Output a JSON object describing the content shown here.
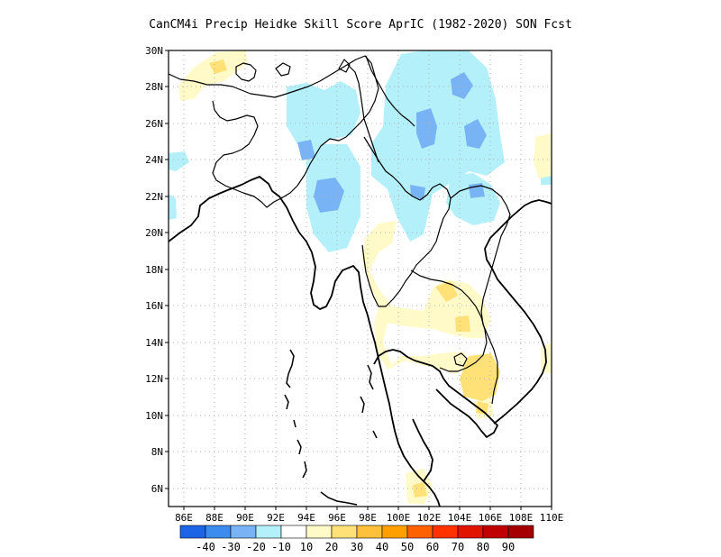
{
  "title": "CanCM4i Precip Heidke Skill Score AprIC (1982-2020) SON Fcst",
  "map": {
    "lon_range": [
      85,
      110
    ],
    "lat_range": [
      5,
      30
    ],
    "lat_ticks": [
      "6N",
      "8N",
      "10N",
      "12N",
      "14N",
      "16N",
      "18N",
      "20N",
      "22N",
      "24N",
      "26N",
      "28N",
      "30N"
    ],
    "lon_ticks": [
      "86E",
      "88E",
      "90E",
      "92E",
      "94E",
      "96E",
      "98E",
      "100E",
      "102E",
      "104E",
      "106E",
      "108E",
      "110E"
    ],
    "grid": "dotted"
  },
  "colorbar": {
    "colors": [
      "#1e64e6",
      "#3c8cf0",
      "#78b4f5",
      "#b4f0fa",
      "#ffffff",
      "#fffac8",
      "#ffe178",
      "#ffc03c",
      "#ffa000",
      "#ff6000",
      "#ff3200",
      "#e11400",
      "#c00000",
      "#a50000"
    ],
    "labels": [
      "-40",
      "-30",
      "-20",
      "-10",
      "10",
      "20",
      "30",
      "40",
      "50",
      "60",
      "70",
      "80",
      "90"
    ]
  }
}
